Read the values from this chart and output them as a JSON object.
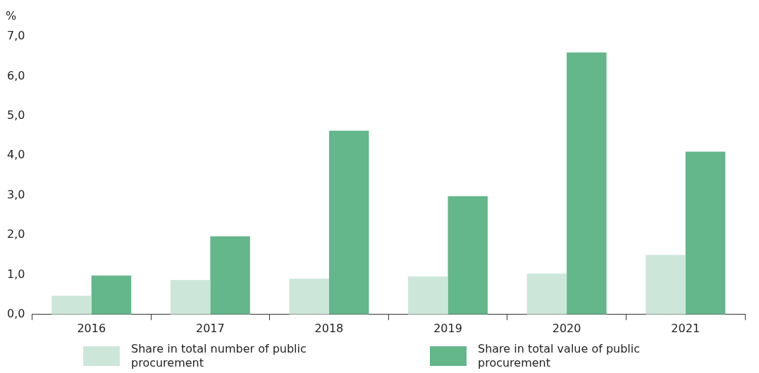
{
  "chart_data": {
    "type": "bar",
    "ylabel": "%",
    "categories": [
      "2016",
      "2017",
      "2018",
      "2019",
      "2020",
      "2021"
    ],
    "series": [
      {
        "name": "Share in total number of public procurement",
        "color": "#cde6da",
        "values": [
          0.47,
          0.87,
          0.9,
          0.96,
          1.03,
          1.5
        ]
      },
      {
        "name": "Share in total value of public procurement",
        "color": "#64b68b",
        "values": [
          0.98,
          1.97,
          4.63,
          2.98,
          6.6,
          4.1
        ]
      }
    ],
    "ylim": [
      0,
      7
    ],
    "yticks": [
      {
        "value": 0,
        "label": "0,0"
      },
      {
        "value": 1,
        "label": "1,0"
      },
      {
        "value": 2,
        "label": "2,0"
      },
      {
        "value": 3,
        "label": "3,0"
      },
      {
        "value": 4,
        "label": "4,0"
      },
      {
        "value": 5,
        "label": "5,0"
      },
      {
        "value": 6,
        "label": "6,0"
      },
      {
        "value": 7,
        "label": "7,0"
      }
    ],
    "grid": false,
    "legend": "bottom"
  }
}
